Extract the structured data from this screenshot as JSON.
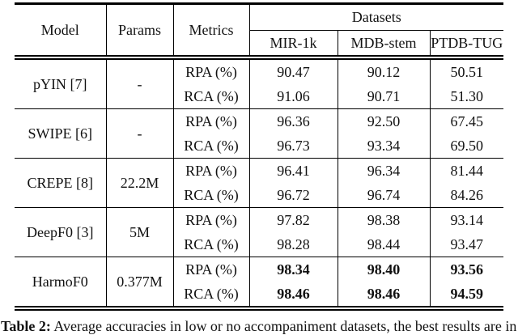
{
  "table": {
    "header": {
      "model": "Model",
      "params": "Params",
      "metrics": "Metrics",
      "datasets_group": "Datasets",
      "datasets": [
        "MIR-1k",
        "MDB-stem",
        "PTDB-TUG"
      ]
    },
    "rows": [
      {
        "model": "pYIN [7]",
        "params": "-",
        "best": false,
        "metrics": [
          {
            "label": "RPA (%)",
            "values": [
              "90.47",
              "90.12",
              "50.51"
            ]
          },
          {
            "label": "RCA (%)",
            "values": [
              "91.06",
              "90.71",
              "51.30"
            ]
          }
        ]
      },
      {
        "model": "SWIPE [6]",
        "params": "-",
        "best": false,
        "metrics": [
          {
            "label": "RPA (%)",
            "values": [
              "96.36",
              "92.50",
              "67.45"
            ]
          },
          {
            "label": "RCA (%)",
            "values": [
              "96.73",
              "93.34",
              "69.50"
            ]
          }
        ]
      },
      {
        "model": "CREPE [8]",
        "params": "22.2M",
        "best": false,
        "metrics": [
          {
            "label": "RPA (%)",
            "values": [
              "96.41",
              "96.34",
              "81.44"
            ]
          },
          {
            "label": "RCA (%)",
            "values": [
              "96.72",
              "96.74",
              "84.26"
            ]
          }
        ]
      },
      {
        "model": "DeepF0 [3]",
        "params": "5M",
        "best": false,
        "metrics": [
          {
            "label": "RPA (%)",
            "values": [
              "97.82",
              "98.38",
              "93.14"
            ]
          },
          {
            "label": "RCA (%)",
            "values": [
              "98.28",
              "98.44",
              "93.47"
            ]
          }
        ]
      },
      {
        "model": "HarmoF0",
        "params": "0.377M",
        "best": true,
        "metrics": [
          {
            "label": "RPA (%)",
            "values": [
              "98.34",
              "98.40",
              "93.56"
            ]
          },
          {
            "label": "RCA (%)",
            "values": [
              "98.46",
              "98.46",
              "94.59"
            ]
          }
        ]
      }
    ]
  },
  "caption": {
    "label": "Table 2:",
    "text": "Average accuracies in low or no accompaniment datasets, the best results are in bold."
  },
  "colors": {
    "text": "#111111",
    "rule": "#000000",
    "background": "#ffffff"
  }
}
